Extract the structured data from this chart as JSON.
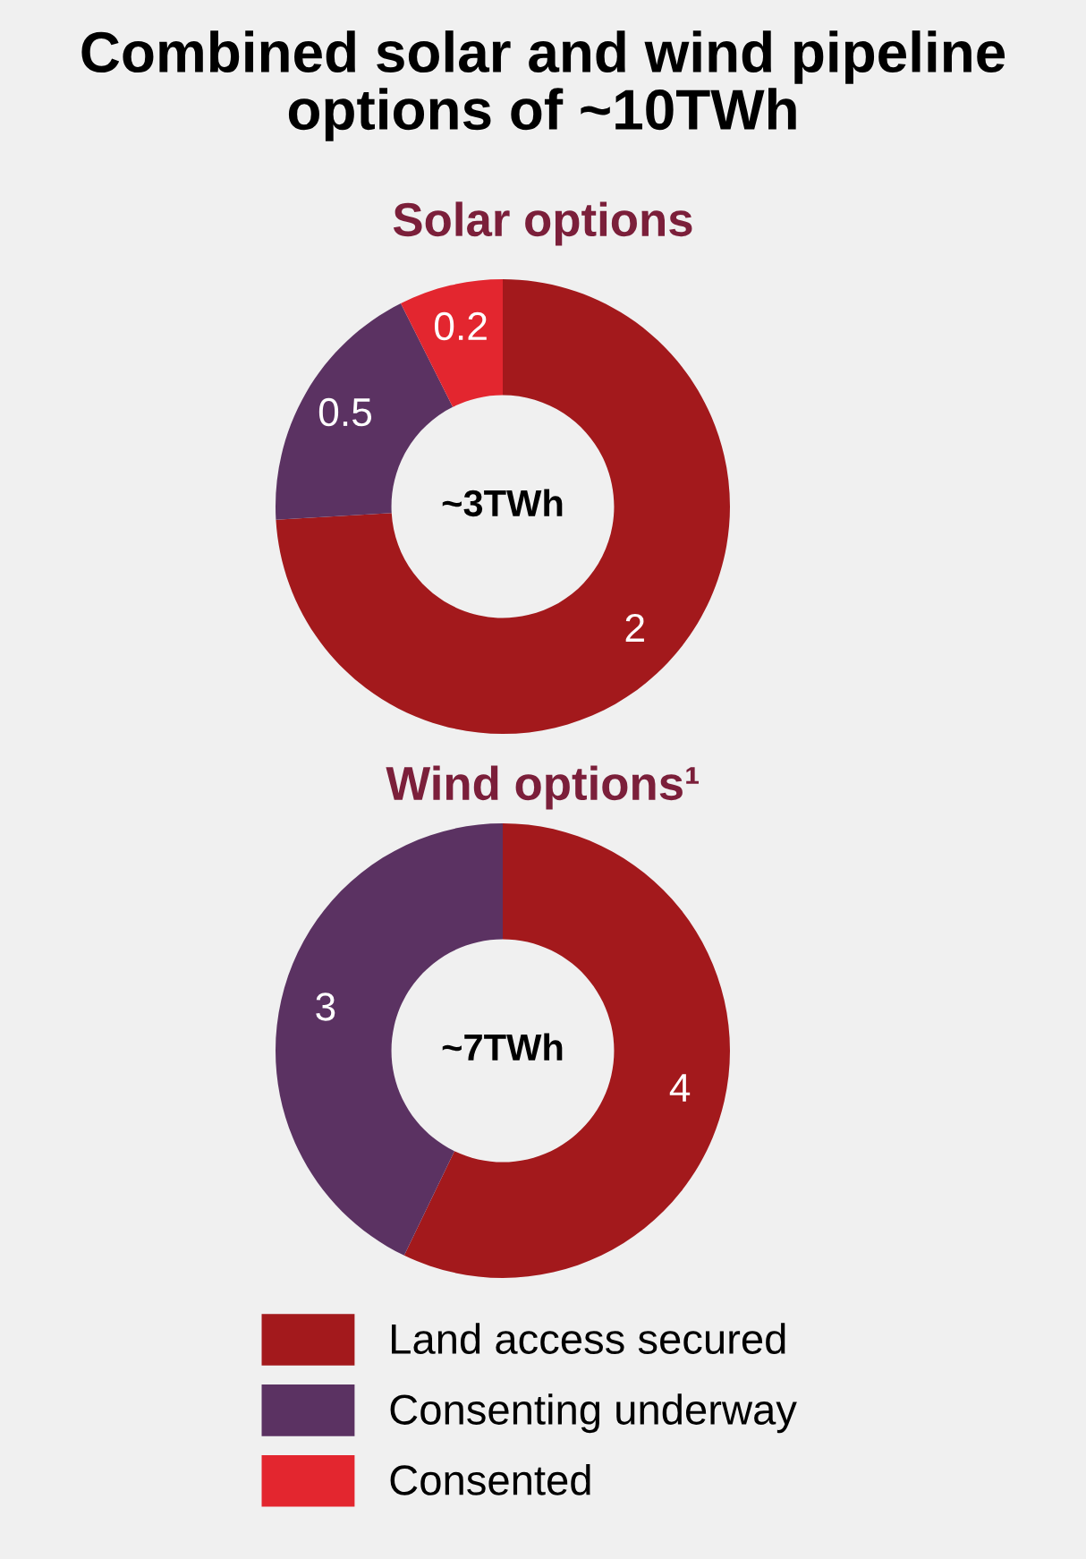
{
  "chart_data": [
    {
      "type": "donut",
      "title": "Combined solar and wind pipeline options of ~10TWh",
      "subtitle": "Solar options",
      "categories": [
        "Land access secured",
        "Consenting underway",
        "Consented"
      ],
      "values": [
        2,
        0.5,
        0.2
      ],
      "colors": [
        "#a3191c",
        "#5b3262",
        "#e3262f"
      ],
      "data_labels": true,
      "annotations": [
        "~3TWh"
      ],
      "legend": "bottom"
    },
    {
      "type": "donut",
      "title": "Wind options¹",
      "categories": [
        null,
        null
      ],
      "values": [
        4,
        3
      ],
      "colors": [
        "#a3191c",
        "#5b3262"
      ],
      "data_labels": true,
      "annotations": [
        "~7TWh"
      ],
      "legend": false
    }
  ]
}
